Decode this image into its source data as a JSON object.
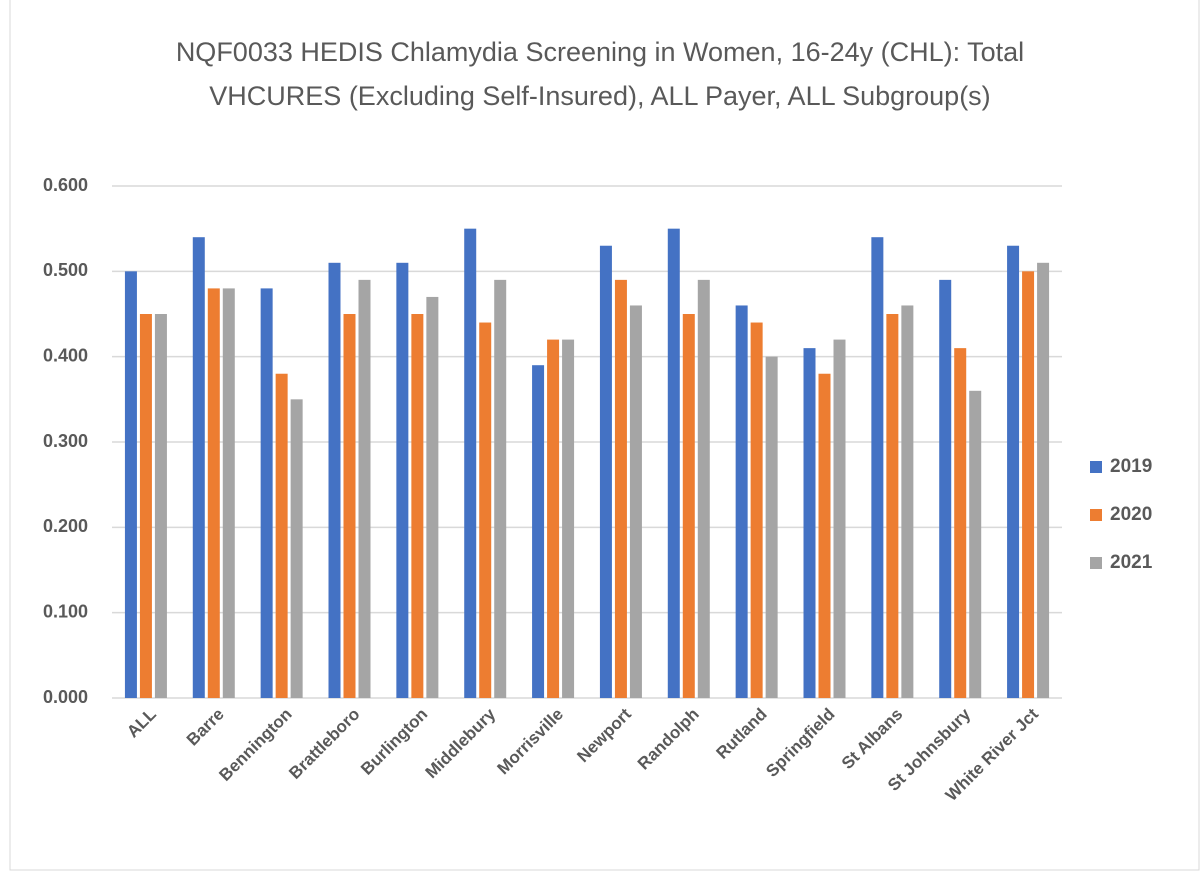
{
  "chart_data": {
    "type": "bar",
    "title": "NQF0033 HEDIS Chlamydia Screening in Women, 16-24y (CHL): Total VHCURES (Excluding Self-Insured), ALL Payer, ALL Subgroup(s)",
    "categories": [
      "ALL",
      "Barre",
      "Bennington",
      "Brattleboro",
      "Burlington",
      "Middlebury",
      "Morrisville",
      "Newport",
      "Randolph",
      "Rutland",
      "Springfield",
      "St Albans",
      "St Johnsbury",
      "White River Jct"
    ],
    "series": [
      {
        "name": "2019",
        "color": "#4472c4",
        "values": [
          0.5,
          0.54,
          0.48,
          0.51,
          0.51,
          0.55,
          0.39,
          0.53,
          0.55,
          0.46,
          0.41,
          0.54,
          0.49,
          0.53
        ]
      },
      {
        "name": "2020",
        "color": "#ed7d31",
        "values": [
          0.45,
          0.48,
          0.38,
          0.45,
          0.45,
          0.44,
          0.42,
          0.49,
          0.45,
          0.44,
          0.38,
          0.45,
          0.41,
          0.5
        ]
      },
      {
        "name": "2021",
        "color": "#a5a5a5",
        "values": [
          0.45,
          0.48,
          0.35,
          0.49,
          0.47,
          0.49,
          0.42,
          0.46,
          0.49,
          0.4,
          0.42,
          0.46,
          0.36,
          0.51
        ]
      }
    ],
    "ylim": [
      0,
      0.6
    ],
    "yticks": [
      {
        "value": 0,
        "label": "0.000"
      },
      {
        "value": 0.1,
        "label": "0.100"
      },
      {
        "value": 0.2,
        "label": "0.200"
      },
      {
        "value": 0.3,
        "label": "0.300"
      },
      {
        "value": 0.4,
        "label": "0.400"
      },
      {
        "value": 0.5,
        "label": "0.500"
      },
      {
        "value": 0.6,
        "label": "0.600"
      }
    ],
    "grid": true,
    "legend": "right"
  }
}
